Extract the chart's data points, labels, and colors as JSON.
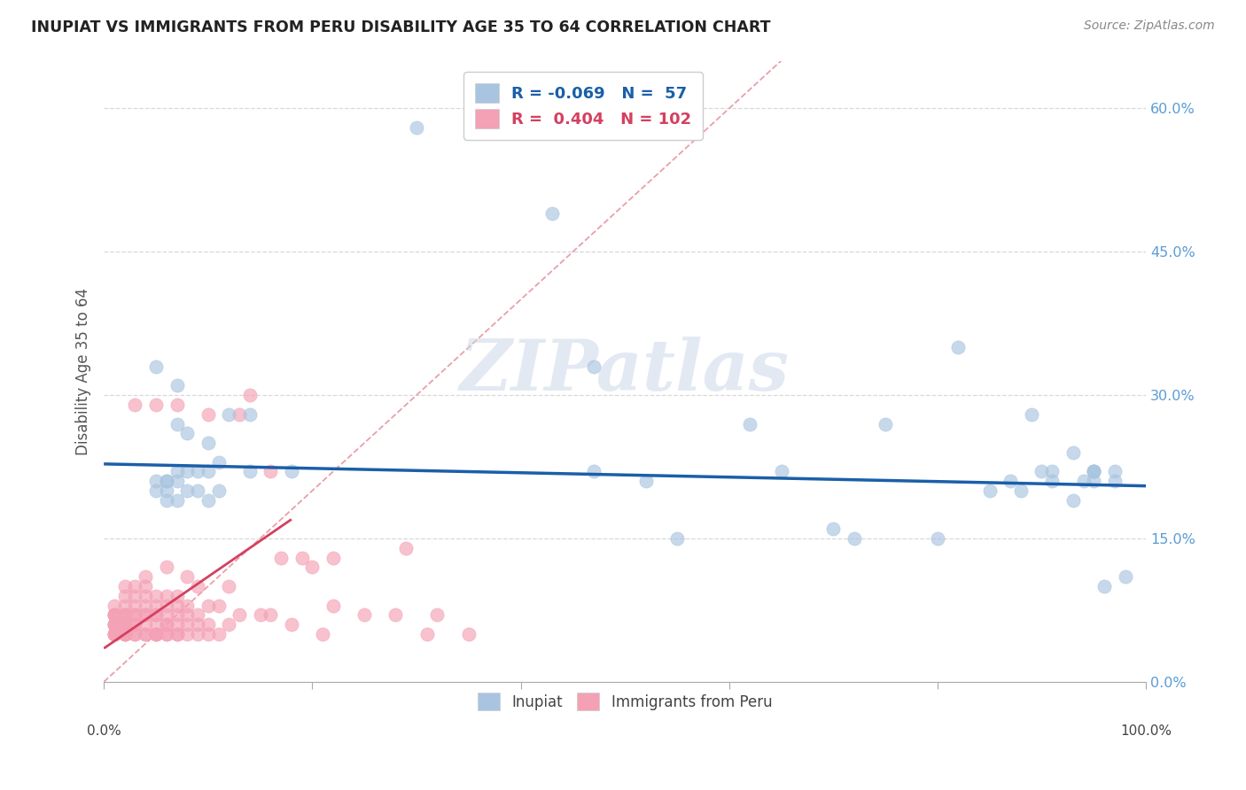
{
  "title": "INUPIAT VS IMMIGRANTS FROM PERU DISABILITY AGE 35 TO 64 CORRELATION CHART",
  "source": "Source: ZipAtlas.com",
  "ylabel": "Disability Age 35 to 64",
  "xlim": [
    0,
    100
  ],
  "ylim": [
    0,
    65
  ],
  "xticks_major": [
    0,
    20,
    40,
    60,
    80,
    100
  ],
  "xtick_left_label": "0.0%",
  "xtick_right_label": "100.0%",
  "yticks": [
    0,
    15,
    30,
    45,
    60
  ],
  "yticklabels": [
    "0.0%",
    "15.0%",
    "30.0%",
    "45.0%",
    "60.0%"
  ],
  "blue_R": "-0.069",
  "blue_N": "57",
  "pink_R": "0.404",
  "pink_N": "102",
  "blue_color": "#a8c4e0",
  "pink_color": "#f4a0b5",
  "blue_line_color": "#1a5fa8",
  "pink_line_color": "#d44060",
  "yaxis_tick_color": "#5b9bd5",
  "grid_color": "#d8d8d8",
  "diag_line_color": "#e8a0a8",
  "watermark_text": "ZIPatlas",
  "watermark_color": "#ccd8e8",
  "blue_scatter_x": [
    30,
    43,
    5,
    7,
    7,
    8,
    10,
    12,
    14,
    7,
    6,
    5,
    5,
    6,
    8,
    9,
    10,
    11,
    14,
    18,
    47,
    47,
    52,
    65,
    70,
    75,
    80,
    85,
    87,
    88,
    89,
    90,
    91,
    93,
    93,
    94,
    95,
    95,
    96,
    97,
    97,
    98,
    62,
    55,
    72,
    82,
    91,
    95,
    95,
    6,
    7,
    8,
    9,
    10,
    11,
    6,
    7
  ],
  "blue_scatter_y": [
    58,
    49,
    33,
    31,
    27,
    26,
    25,
    28,
    28,
    22,
    21,
    21,
    20,
    20,
    22,
    22,
    22,
    23,
    22,
    22,
    33,
    22,
    21,
    22,
    16,
    27,
    15,
    20,
    21,
    20,
    28,
    22,
    22,
    19,
    24,
    21,
    21,
    22,
    10,
    21,
    22,
    11,
    27,
    15,
    15,
    35,
    21,
    22,
    22,
    19,
    19,
    20,
    20,
    19,
    20,
    21,
    21
  ],
  "pink_scatter_x": [
    1,
    1,
    1,
    1,
    1,
    1,
    1,
    1,
    1,
    1,
    2,
    2,
    2,
    2,
    2,
    2,
    2,
    2,
    2,
    2,
    2,
    2,
    2,
    3,
    3,
    3,
    3,
    3,
    3,
    3,
    3,
    3,
    3,
    4,
    4,
    4,
    4,
    4,
    4,
    4,
    4,
    4,
    5,
    5,
    5,
    5,
    5,
    5,
    5,
    5,
    5,
    6,
    6,
    6,
    6,
    6,
    6,
    6,
    6,
    7,
    7,
    7,
    7,
    7,
    7,
    7,
    8,
    8,
    8,
    8,
    8,
    9,
    9,
    9,
    9,
    10,
    10,
    10,
    10,
    11,
    11,
    12,
    12,
    13,
    13,
    14,
    15,
    16,
    16,
    17,
    18,
    19,
    20,
    21,
    22,
    22,
    25,
    28,
    29,
    31,
    32,
    35
  ],
  "pink_scatter_y": [
    5,
    5,
    5,
    6,
    6,
    6,
    7,
    7,
    7,
    8,
    5,
    5,
    5,
    6,
    6,
    6,
    6,
    7,
    7,
    7,
    8,
    9,
    10,
    5,
    5,
    6,
    6,
    7,
    7,
    8,
    9,
    10,
    29,
    5,
    5,
    6,
    7,
    7,
    8,
    9,
    10,
    11,
    5,
    5,
    5,
    6,
    7,
    7,
    8,
    9,
    29,
    5,
    5,
    6,
    6,
    7,
    8,
    9,
    12,
    5,
    5,
    6,
    7,
    8,
    9,
    29,
    5,
    6,
    7,
    8,
    11,
    5,
    6,
    7,
    10,
    5,
    6,
    8,
    28,
    5,
    8,
    6,
    10,
    7,
    28,
    30,
    7,
    7,
    22,
    13,
    6,
    13,
    12,
    5,
    8,
    13,
    7,
    7,
    14,
    5,
    7,
    5
  ],
  "blue_trend_x": [
    0,
    100
  ],
  "blue_trend_y": [
    22.8,
    20.5
  ],
  "pink_trend_x": [
    0,
    18
  ],
  "pink_trend_y": [
    3.5,
    17.0
  ],
  "figsize": [
    14.06,
    8.92
  ],
  "dpi": 100
}
